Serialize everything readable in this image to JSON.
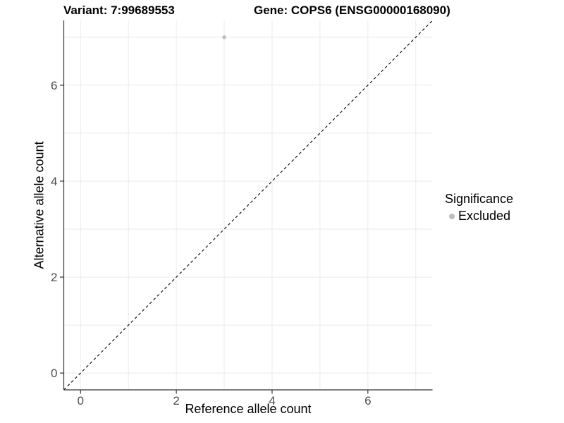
{
  "titles": {
    "variant": "Variant: 7:99689553",
    "gene": "Gene: COPS6 (ENSG00000168090)"
  },
  "axes": {
    "x_label": "Reference allele count",
    "y_label": "Alternative allele count",
    "x_tick_labels": [
      "0",
      "2",
      "4",
      "6"
    ],
    "y_tick_labels": [
      "0",
      "2",
      "4",
      "6"
    ]
  },
  "legend": {
    "title": "Significance",
    "items": [
      {
        "label": "Excluded",
        "color": "#bdbdbd"
      }
    ]
  },
  "colors": {
    "grid": "#ebebeb",
    "axis_line": "#333333",
    "tick": "#333333",
    "tick_label": "#4d4d4d",
    "reference_line": "#000000",
    "point": "#bdbdbd",
    "background": "#ffffff"
  },
  "chart_data": {
    "type": "scatter",
    "title": "Variant: 7:99689553  |  Gene: COPS6 (ENSG00000168090)",
    "xlabel": "Reference allele count",
    "ylabel": "Alternative allele count",
    "xlim": [
      -0.35,
      7.35
    ],
    "ylim": [
      -0.35,
      7.35
    ],
    "x_breaks": [
      0,
      2,
      4,
      6
    ],
    "y_breaks": [
      0,
      2,
      4,
      6
    ],
    "gridlines_x": [
      0,
      1,
      2,
      3,
      4,
      5,
      6,
      7
    ],
    "gridlines_y": [
      0,
      1,
      2,
      3,
      4,
      5,
      6,
      7
    ],
    "grid": true,
    "legend_position": "right",
    "series": [
      {
        "name": "Excluded",
        "color": "#bdbdbd",
        "points": [
          {
            "x": 3,
            "y": 7
          }
        ]
      }
    ],
    "reference_line": {
      "type": "identity",
      "style": "dashed",
      "color": "#000000",
      "from": [
        -0.35,
        -0.35
      ],
      "to": [
        7.35,
        7.35
      ]
    }
  }
}
